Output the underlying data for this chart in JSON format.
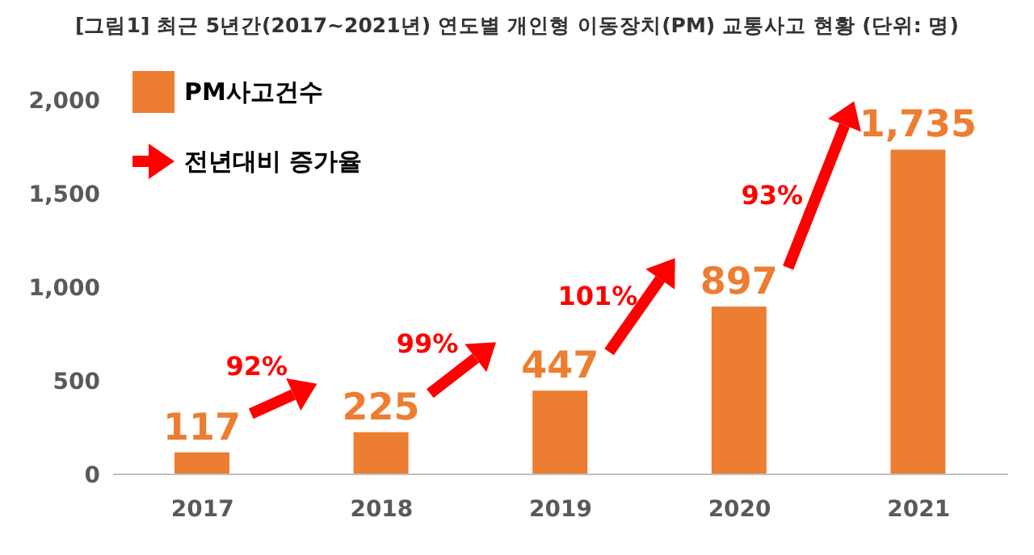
{
  "chart_data": {
    "type": "bar",
    "title": "[그림1] 최근 5년간(2017~2021년) 연도별 개인형 이동장치(PM) 교통사고 현황 (단위: 명)",
    "categories": [
      "2017",
      "2018",
      "2019",
      "2020",
      "2021"
    ],
    "series": [
      {
        "name": "PM사고건수",
        "color": "#ed7d31",
        "values": [
          117,
          225,
          447,
          897,
          1735
        ],
        "value_labels": [
          "117",
          "225",
          "447",
          "897",
          "1,735"
        ]
      }
    ],
    "ylim": [
      0,
      2000
    ],
    "yticks": [
      {
        "value": 0,
        "label": "0"
      },
      {
        "value": 500,
        "label": "500"
      },
      {
        "value": 1000,
        "label": "1,000"
      },
      {
        "value": 1500,
        "label": "1,500"
      },
      {
        "value": 2000,
        "label": "2,000"
      }
    ],
    "grid": false,
    "legend": "top left",
    "annotations": [
      "전년대비 증가율",
      "92%",
      "99%",
      "101%",
      "93%"
    ]
  }
}
